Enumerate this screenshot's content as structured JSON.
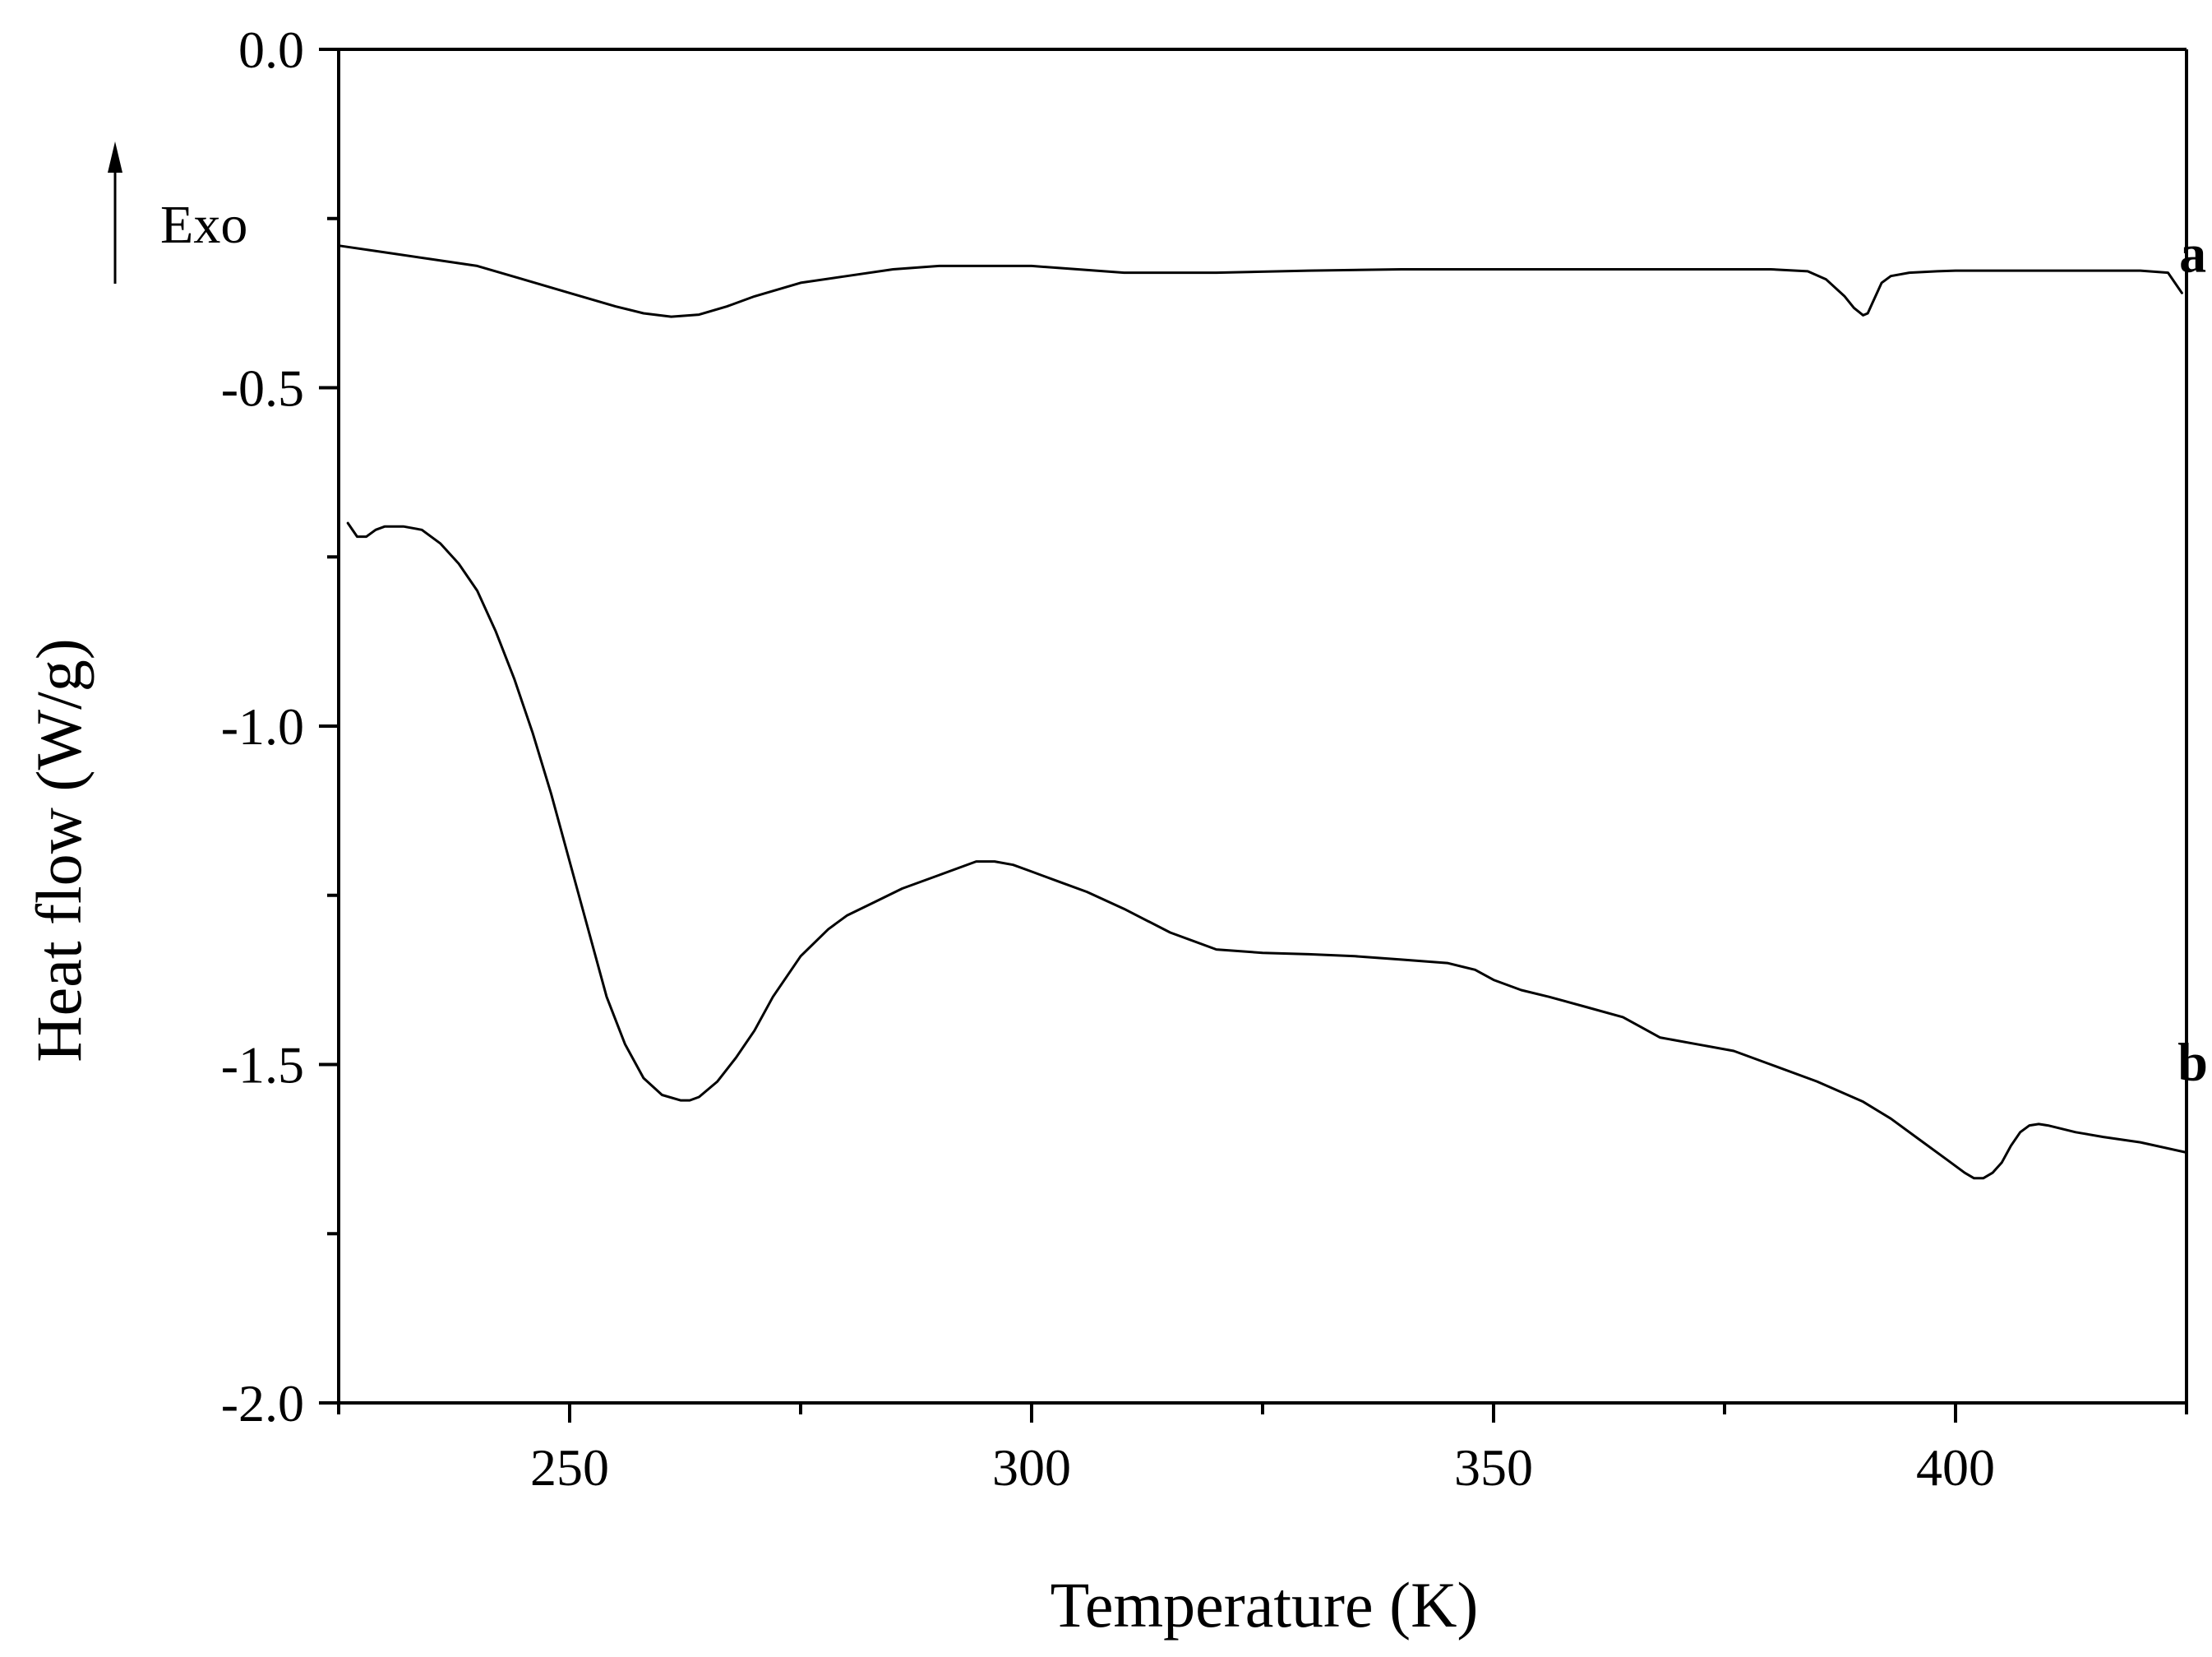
{
  "chart_data": {
    "type": "line",
    "title": "",
    "xlabel": "Temperature (K)",
    "ylabel": "Heat flow (W/g)",
    "xlim": [
      225,
      425
    ],
    "ylim": [
      -2.0,
      0.0
    ],
    "x_ticks_major": [
      250,
      300,
      350,
      400
    ],
    "x_tick_labels": [
      "250",
      "300",
      "350",
      "400"
    ],
    "x_ticks_minor": [
      225,
      275,
      325,
      375,
      425
    ],
    "y_ticks_major": [
      0.0,
      -0.5,
      -1.0,
      -1.5,
      -2.0
    ],
    "y_tick_labels": [
      "0.0",
      "-0.5",
      "-1.0",
      "-1.5",
      "-2.0"
    ],
    "y_ticks_minor": [
      -0.25,
      -0.75,
      -1.25,
      -1.75
    ],
    "grid": false,
    "annotation": {
      "text": "Exo",
      "arrow": "up"
    },
    "series": [
      {
        "name": "a",
        "x": [
          225,
          230,
          235,
          240,
          245,
          250,
          255,
          258,
          261,
          264,
          267,
          270,
          275,
          280,
          285,
          290,
          295,
          300,
          305,
          310,
          315,
          320,
          330,
          340,
          350,
          360,
          370,
          380,
          384,
          386,
          388,
          389,
          390,
          390.5,
          391,
          392,
          393,
          395,
          398,
          400,
          405,
          410,
          415,
          420,
          423,
          424.5
        ],
        "y": [
          -0.29,
          -0.3,
          -0.31,
          -0.32,
          -0.34,
          -0.36,
          -0.38,
          -0.39,
          -0.395,
          -0.392,
          -0.38,
          -0.365,
          -0.345,
          -0.335,
          -0.325,
          -0.32,
          -0.32,
          -0.32,
          -0.325,
          -0.33,
          -0.33,
          -0.33,
          -0.327,
          -0.325,
          -0.325,
          -0.325,
          -0.325,
          -0.325,
          -0.328,
          -0.34,
          -0.365,
          -0.382,
          -0.393,
          -0.39,
          -0.375,
          -0.345,
          -0.335,
          -0.33,
          -0.328,
          -0.327,
          -0.327,
          -0.327,
          -0.327,
          -0.327,
          -0.33,
          -0.36
        ]
      },
      {
        "name": "b",
        "x": [
          226,
          227,
          228,
          229,
          230,
          232,
          234,
          236,
          238,
          240,
          242,
          244,
          246,
          248,
          250,
          252,
          254,
          256,
          258,
          260,
          262,
          263,
          264,
          266,
          268,
          270,
          272,
          275,
          278,
          280,
          283,
          286,
          290,
          294,
          296,
          298,
          300,
          303,
          306,
          310,
          315,
          320,
          325,
          330,
          335,
          340,
          345,
          348,
          350,
          353,
          356,
          360,
          364,
          366,
          368,
          372,
          376,
          380,
          385,
          390,
          393,
          396,
          399,
          401,
          402,
          403,
          404,
          405,
          406,
          407,
          408,
          409,
          410,
          413,
          416,
          420,
          425
        ],
        "y": [
          -0.7,
          -0.72,
          -0.72,
          -0.71,
          -0.705,
          -0.705,
          -0.71,
          -0.73,
          -0.76,
          -0.8,
          -0.86,
          -0.93,
          -1.01,
          -1.1,
          -1.2,
          -1.3,
          -1.4,
          -1.47,
          -1.52,
          -1.545,
          -1.553,
          -1.553,
          -1.548,
          -1.525,
          -1.49,
          -1.45,
          -1.4,
          -1.34,
          -1.3,
          -1.28,
          -1.26,
          -1.24,
          -1.22,
          -1.2,
          -1.2,
          -1.205,
          -1.215,
          -1.23,
          -1.245,
          -1.27,
          -1.305,
          -1.33,
          -1.335,
          -1.337,
          -1.34,
          -1.345,
          -1.35,
          -1.36,
          -1.375,
          -1.39,
          -1.4,
          -1.415,
          -1.43,
          -1.445,
          -1.46,
          -1.47,
          -1.48,
          -1.5,
          -1.525,
          -1.555,
          -1.58,
          -1.61,
          -1.64,
          -1.66,
          -1.668,
          -1.668,
          -1.66,
          -1.645,
          -1.62,
          -1.6,
          -1.59,
          -1.588,
          -1.59,
          -1.6,
          -1.607,
          -1.615,
          -1.63
        ]
      }
    ]
  }
}
